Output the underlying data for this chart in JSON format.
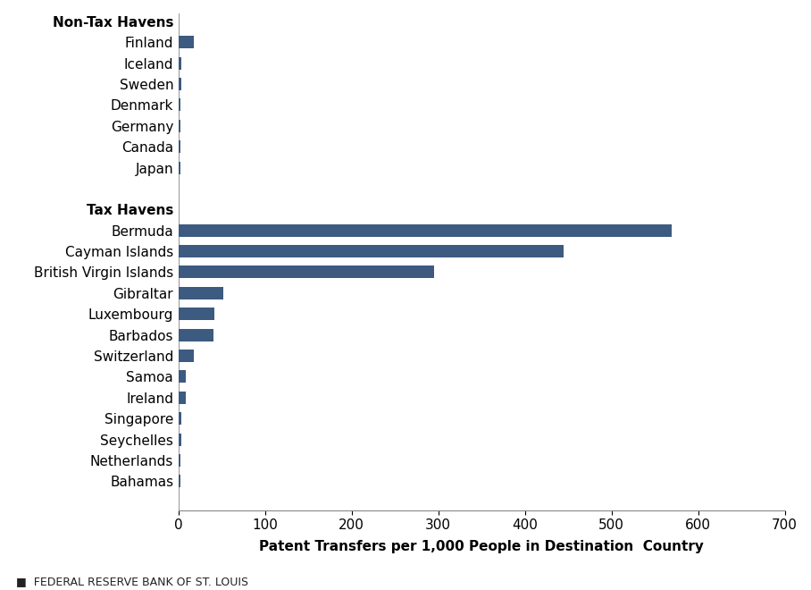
{
  "categories": [
    "Non-Tax Havens",
    "Finland",
    "Iceland",
    "Sweden",
    "Denmark",
    "Germany",
    "Canada",
    "Japan",
    "",
    "Tax Havens",
    "Bermuda",
    "Cayman Islands",
    "British Virgin Islands",
    "Gibraltar",
    "Luxembourg",
    "Barbados",
    "Switzerland",
    "Samoa",
    "Ireland",
    "Singapore",
    "Seychelles",
    "Netherlands",
    "Bahamas"
  ],
  "values": [
    null,
    18,
    3,
    3,
    2,
    2,
    2,
    2,
    null,
    null,
    570,
    445,
    295,
    52,
    42,
    40,
    18,
    8,
    8,
    3,
    3,
    2,
    2
  ],
  "bar_color": "#3d5a80",
  "xlabel": "Patent Transfers per 1,000 People in Destination  Country",
  "xlim": [
    0,
    700
  ],
  "xticks": [
    0,
    100,
    200,
    300,
    400,
    500,
    600,
    700
  ],
  "footer_text": "■  FEDERAL RESERVE BANK OF ST. LOUIS",
  "bg_color": "#ffffff",
  "bar_height": 0.6,
  "header_fontsize": 11,
  "label_fontsize": 11,
  "tick_fontsize": 11,
  "xlabel_fontsize": 11,
  "footer_fontsize": 9
}
